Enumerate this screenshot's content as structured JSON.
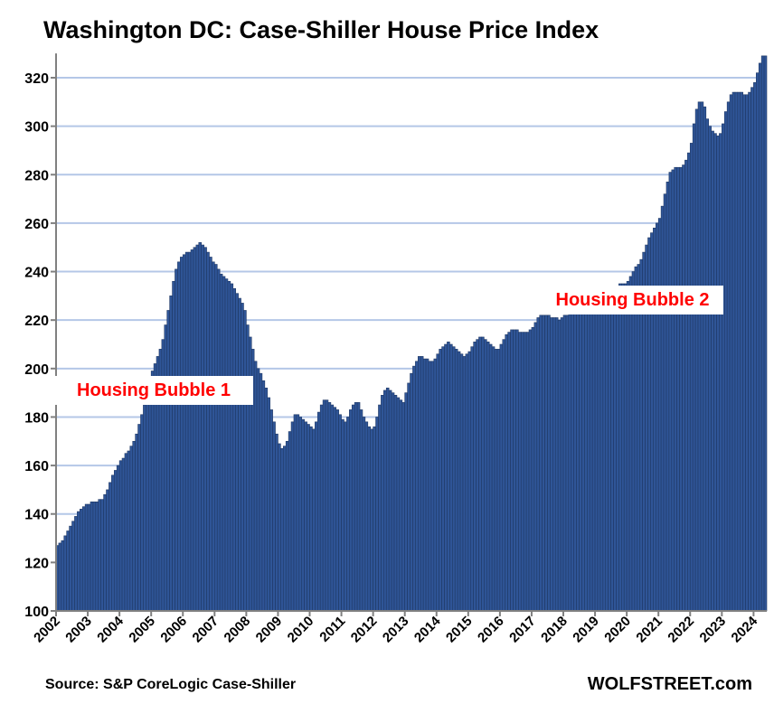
{
  "chart_data": {
    "type": "bar",
    "title": "Washington DC: Case-Shiller House Price Index",
    "xlabel": "",
    "ylabel": "",
    "ylim": [
      100,
      330
    ],
    "yticks": [
      100,
      120,
      140,
      160,
      180,
      200,
      220,
      240,
      260,
      280,
      300,
      320
    ],
    "xticks": [
      "2002",
      "2003",
      "2004",
      "2005",
      "2006",
      "2007",
      "2008",
      "2009",
      "2010",
      "2011",
      "2012",
      "2013",
      "2014",
      "2015",
      "2016",
      "2017",
      "2018",
      "2019",
      "2020",
      "2021",
      "2022",
      "2023",
      "2024"
    ],
    "frequency": "monthly",
    "start": "2002-01",
    "grid": true,
    "series": [
      {
        "name": "Case-Shiller Index",
        "color": "#2f5597",
        "values": [
          127,
          128,
          129,
          131,
          133,
          135,
          137,
          139,
          141,
          142,
          143,
          144,
          144,
          145,
          145,
          145,
          146,
          146,
          148,
          150,
          153,
          156,
          158,
          160,
          162,
          163,
          165,
          166,
          168,
          170,
          173,
          177,
          181,
          185,
          189,
          195,
          199,
          202,
          205,
          208,
          212,
          218,
          224,
          230,
          236,
          241,
          244,
          246,
          247,
          248,
          248,
          249,
          250,
          251,
          252,
          251,
          250,
          248,
          246,
          244,
          243,
          241,
          239,
          238,
          237,
          236,
          235,
          233,
          231,
          229,
          227,
          224,
          218,
          213,
          208,
          203,
          200,
          198,
          195,
          192,
          188,
          183,
          178,
          173,
          169,
          167,
          168,
          170,
          174,
          178,
          181,
          181,
          180,
          179,
          178,
          177,
          176,
          175,
          178,
          182,
          185,
          187,
          187,
          186,
          185,
          184,
          183,
          181,
          179,
          178,
          180,
          183,
          185,
          186,
          186,
          183,
          180,
          178,
          176,
          175,
          176,
          180,
          185,
          189,
          191,
          192,
          191,
          190,
          189,
          188,
          187,
          186,
          190,
          194,
          198,
          201,
          203,
          205,
          205,
          204,
          204,
          203,
          203,
          204,
          206,
          208,
          209,
          210,
          211,
          210,
          209,
          208,
          207,
          206,
          205,
          206,
          207,
          209,
          211,
          212,
          213,
          213,
          212,
          211,
          210,
          209,
          208,
          208,
          210,
          212,
          214,
          215,
          216,
          216,
          216,
          215,
          215,
          215,
          215,
          216,
          217,
          219,
          221,
          222,
          222,
          222,
          222,
          221,
          221,
          221,
          220,
          221,
          222,
          222,
          223,
          223,
          224,
          224,
          225,
          225,
          226,
          226,
          227,
          228,
          229,
          230,
          231,
          232,
          233,
          234,
          234,
          234,
          234,
          235,
          235,
          235,
          236,
          238,
          240,
          242,
          243,
          245,
          248,
          251,
          254,
          256,
          258,
          260,
          262,
          267,
          272,
          277,
          281,
          282,
          283,
          283,
          283,
          284,
          286,
          289,
          293,
          301,
          307,
          310,
          310,
          308,
          303,
          300,
          298,
          297,
          296,
          297,
          301,
          306,
          310,
          313,
          314,
          314,
          314,
          314,
          313,
          313,
          314,
          316,
          318,
          322,
          326,
          329,
          329
        ]
      }
    ],
    "annotations": [
      "Housing Bubble 1",
      "Housing Bubble 2"
    ],
    "source": "Source: S&P CoreLogic Case-Shiller",
    "brand": "WOLFSTREET.com"
  }
}
